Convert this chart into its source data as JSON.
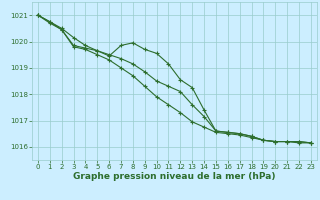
{
  "background_color": "#cceeff",
  "grid_color": "#99cccc",
  "line_color": "#2d6e2d",
  "xlabel": "Graphe pression niveau de la mer (hPa)",
  "xlabel_fontsize": 6.5,
  "ylim": [
    1015.5,
    1021.5
  ],
  "xlim": [
    -0.5,
    23.5
  ],
  "yticks": [
    1016,
    1017,
    1018,
    1019,
    1020,
    1021
  ],
  "xticks": [
    0,
    1,
    2,
    3,
    4,
    5,
    6,
    7,
    8,
    9,
    10,
    11,
    12,
    13,
    14,
    15,
    16,
    17,
    18,
    19,
    20,
    21,
    22,
    23
  ],
  "line1_x": [
    0,
    1,
    2,
    3,
    4,
    5,
    6,
    7,
    8,
    9,
    10,
    11,
    12,
    13,
    14,
    15,
    16,
    17,
    18,
    19,
    20,
    21,
    22,
    23
  ],
  "line1_y": [
    1021.0,
    1020.75,
    1020.5,
    1020.15,
    1019.85,
    1019.65,
    1019.45,
    1019.85,
    1019.95,
    1019.7,
    1019.55,
    1019.15,
    1018.55,
    1018.25,
    1017.4,
    1016.6,
    1016.55,
    1016.5,
    1016.4,
    1016.25,
    1016.2,
    1016.2,
    1016.2,
    1016.15
  ],
  "line2_x": [
    0,
    1,
    2,
    3,
    4,
    5,
    6,
    7,
    8,
    9,
    10,
    11,
    12,
    13,
    14,
    15,
    16,
    17,
    18,
    19,
    20,
    21,
    22,
    23
  ],
  "line2_y": [
    1021.0,
    1020.75,
    1020.45,
    1019.85,
    1019.75,
    1019.65,
    1019.5,
    1019.35,
    1019.15,
    1018.85,
    1018.5,
    1018.3,
    1018.1,
    1017.6,
    1017.15,
    1016.6,
    1016.55,
    1016.5,
    1016.4,
    1016.25,
    1016.2,
    1016.2,
    1016.2,
    1016.15
  ],
  "line3_x": [
    0,
    1,
    2,
    3,
    4,
    5,
    6,
    7,
    8,
    9,
    10,
    11,
    12,
    13,
    14,
    15,
    16,
    17,
    18,
    19,
    20,
    21,
    22,
    23
  ],
  "line3_y": [
    1021.0,
    1020.7,
    1020.45,
    1019.8,
    1019.7,
    1019.5,
    1019.3,
    1019.0,
    1018.7,
    1018.3,
    1017.9,
    1017.6,
    1017.3,
    1016.95,
    1016.75,
    1016.55,
    1016.5,
    1016.45,
    1016.35,
    1016.25,
    1016.2,
    1016.2,
    1016.15,
    1016.15
  ]
}
